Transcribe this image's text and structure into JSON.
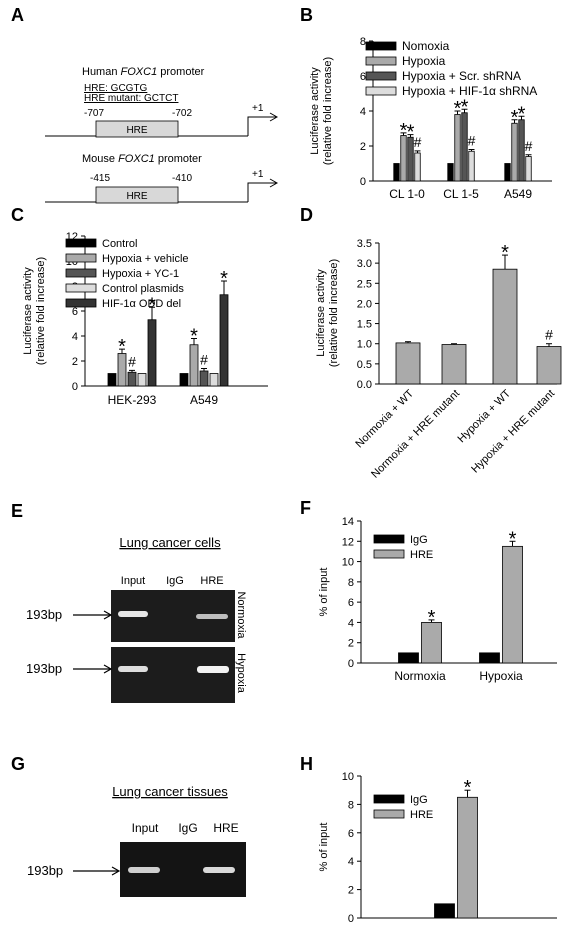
{
  "panels": {
    "A": {
      "label": "A",
      "human_title_prefix": "Human ",
      "human_title_gene": "FOXC1",
      "human_title_suffix": " promoter",
      "hre_seq": "HRE: GCGTG",
      "hre_mutant_seq": "HRE mutant: GCTCT",
      "human_left": "-707",
      "human_right": "-702",
      "box_label": "HRE",
      "tss": "+1",
      "mouse_title_prefix": "Mouse ",
      "mouse_title_gene": "FOXC1",
      "mouse_title_suffix": " promoter",
      "mouse_left": "-415",
      "mouse_right": "-410"
    },
    "E": {
      "label": "E",
      "title": "Lung cancer cells",
      "lanes": [
        "Input",
        "IgG",
        "HRE"
      ],
      "size_marker": "193bp",
      "row_labels": [
        "Normoxia",
        "Hypoxia"
      ]
    },
    "G": {
      "label": "G",
      "title": "Lung cancer tissues",
      "lanes": [
        "Input",
        "IgG",
        "HRE"
      ],
      "size_marker": "193bp"
    }
  },
  "chart_data": [
    {
      "panel": "B",
      "type": "bar",
      "ylabel": "Luciferase activity\n(relative fold increase)",
      "ylim": [
        0,
        8
      ],
      "yticks": [
        0,
        2,
        4,
        6,
        8
      ],
      "categories": [
        "CL 1-0",
        "CL 1-5",
        "A549"
      ],
      "series": [
        {
          "name": "Nomoxia",
          "color": "#000000",
          "values": [
            1.0,
            1.0,
            1.0
          ],
          "errors": [
            0,
            0,
            0
          ],
          "marks": [
            "",
            "",
            ""
          ]
        },
        {
          "name": "Hypoxia",
          "color": "#aaaaaa",
          "values": [
            2.6,
            3.8,
            3.3
          ],
          "errors": [
            0.15,
            0.2,
            0.2
          ],
          "marks": [
            "*",
            "*",
            "*"
          ]
        },
        {
          "name": "Hypoxia + Scr. shRNA",
          "color": "#555555",
          "values": [
            2.5,
            3.9,
            3.5
          ],
          "errors": [
            0.15,
            0.2,
            0.2
          ],
          "marks": [
            "*",
            "*",
            "*"
          ]
        },
        {
          "name": "Hypoxia + HIF-1α shRNA",
          "color": "#dddddd",
          "values": [
            1.6,
            1.7,
            1.4
          ],
          "errors": [
            0.12,
            0.1,
            0.1
          ],
          "marks": [
            "#",
            "#",
            "#"
          ]
        }
      ],
      "legend": "top-right",
      "grid": false
    },
    {
      "panel": "C",
      "type": "bar",
      "ylabel": "Luciferase activity\n(relative fold increase)",
      "ylim": [
        0,
        12
      ],
      "yticks": [
        0,
        2,
        4,
        6,
        8,
        10,
        12
      ],
      "categories": [
        "HEK-293",
        "A549"
      ],
      "series": [
        {
          "name": "Control",
          "color": "#000000",
          "values": [
            1.0,
            1.0
          ],
          "errors": [
            0,
            0
          ],
          "marks": [
            "",
            ""
          ]
        },
        {
          "name": "Hypoxia + vehicle",
          "color": "#aaaaaa",
          "values": [
            2.6,
            3.3
          ],
          "errors": [
            0.35,
            0.5
          ],
          "marks": [
            "*",
            "*"
          ]
        },
        {
          "name": "Hypoxia + YC-1",
          "color": "#555555",
          "values": [
            1.1,
            1.2
          ],
          "errors": [
            0.15,
            0.2
          ],
          "marks": [
            "#",
            "#"
          ]
        },
        {
          "name": "Control plasmids",
          "color": "#dddddd",
          "values": [
            1.0,
            1.0
          ],
          "errors": [
            0,
            0
          ],
          "marks": [
            "",
            ""
          ]
        },
        {
          "name": "HIF-1α ODD del",
          "color": "#333333",
          "values": [
            5.3,
            7.3
          ],
          "errors": [
            1.0,
            1.1
          ],
          "marks": [
            "*",
            "*"
          ]
        }
      ],
      "legend": "top-left",
      "grid": false
    },
    {
      "panel": "D",
      "type": "bar",
      "ylabel": "Luciferase activity\n(relative fold increase)",
      "ylim": [
        0,
        3.5
      ],
      "yticks": [
        "0.0",
        "0.5",
        "1.0",
        "1.5",
        "2.0",
        "2.5",
        "3.0",
        "3.5"
      ],
      "categories": [
        "Normoxia + WT",
        "Normoxia + HRE mutant",
        "Hypoxia + WT",
        "Hypoxia + HRE mutant"
      ],
      "values": [
        1.02,
        0.98,
        2.85,
        0.93
      ],
      "errors": [
        0.03,
        0.02,
        0.35,
        0.07
      ],
      "marks": [
        "",
        "",
        "*",
        "#"
      ],
      "color": "#aaaaaa",
      "grid": false
    },
    {
      "panel": "F",
      "type": "bar",
      "ylabel": "% of input",
      "ylim": [
        0,
        14
      ],
      "yticks": [
        0,
        2,
        4,
        6,
        8,
        10,
        12,
        14
      ],
      "categories": [
        "Normoxia",
        "Hypoxia"
      ],
      "series": [
        {
          "name": "IgG",
          "color": "#000000",
          "values": [
            1.0,
            1.0
          ],
          "errors": [
            0,
            0
          ],
          "marks": [
            "",
            ""
          ]
        },
        {
          "name": "HRE",
          "color": "#aaaaaa",
          "values": [
            4.0,
            11.5
          ],
          "errors": [
            0.25,
            0.5
          ],
          "marks": [
            "*",
            "*"
          ]
        }
      ],
      "legend": "top-left",
      "grid": false
    },
    {
      "panel": "H",
      "type": "bar",
      "ylabel": "% of input",
      "ylim": [
        0,
        10
      ],
      "yticks": [
        0,
        2,
        4,
        6,
        8,
        10
      ],
      "categories": [
        ""
      ],
      "series": [
        {
          "name": "IgG",
          "color": "#000000",
          "values": [
            1.0
          ],
          "errors": [
            0
          ],
          "marks": [
            ""
          ]
        },
        {
          "name": "HRE",
          "color": "#aaaaaa",
          "values": [
            8.5
          ],
          "errors": [
            0.5
          ],
          "marks": [
            "*"
          ]
        }
      ],
      "legend": "top-left",
      "grid": false
    }
  ]
}
